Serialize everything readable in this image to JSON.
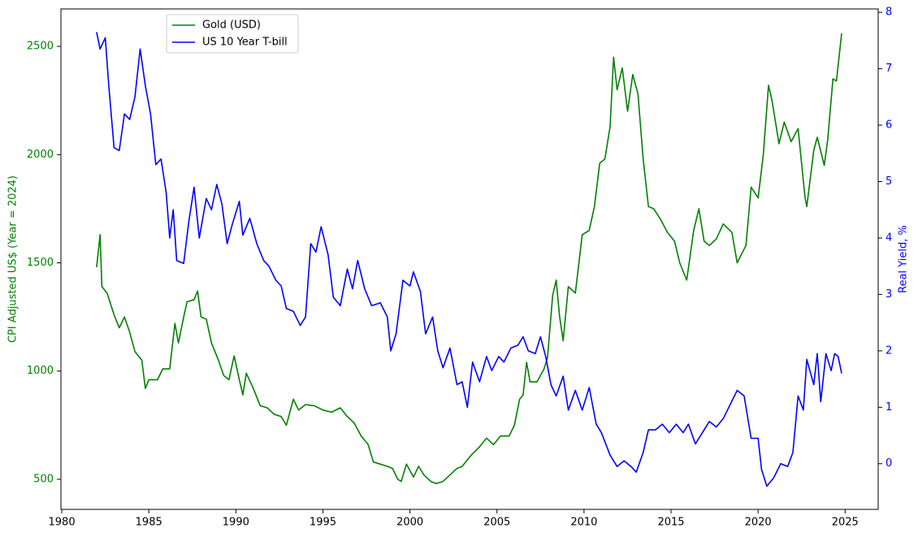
{
  "chart_data": {
    "type": "line",
    "ylabel": "CPI Adjusted US$ (Year = 2024)",
    "y2label": "Real Yield, %",
    "xlim": [
      1979.95,
      2026.9
    ],
    "ylim": [
      361,
      2673
    ],
    "y2lim": [
      -0.81,
      8.06
    ],
    "xticks": [
      1980,
      1985,
      1990,
      1995,
      2000,
      2005,
      2010,
      2015,
      2020,
      2025
    ],
    "yticks": [
      500,
      1000,
      1500,
      2000,
      2500
    ],
    "y2ticks": [
      0,
      1,
      2,
      3,
      4,
      5,
      6,
      7,
      8
    ],
    "legend": "upper left",
    "series": [
      {
        "name": "Gold (USD)",
        "color": "#008000",
        "x": [
          1982.0,
          1982.2,
          1982.3,
          1982.6,
          1983.0,
          1983.3,
          1983.6,
          1983.9,
          1984.2,
          1984.6,
          1984.8,
          1985.0,
          1985.5,
          1985.8,
          1986.2,
          1986.5,
          1986.7,
          1987.0,
          1987.2,
          1987.6,
          1987.8,
          1988.0,
          1988.3,
          1988.6,
          1989.0,
          1989.3,
          1989.6,
          1989.9,
          1990.2,
          1990.4,
          1990.6,
          1991.0,
          1991.4,
          1991.8,
          1992.2,
          1992.6,
          1992.9,
          1993.3,
          1993.6,
          1994.0,
          1994.5,
          1995.0,
          1995.5,
          1996.0,
          1996.4,
          1996.8,
          1997.2,
          1997.6,
          1997.9,
          1998.3,
          1998.7,
          1999.0,
          1999.3,
          1999.5,
          1999.8,
          2000.2,
          2000.5,
          2000.8,
          2001.2,
          2001.5,
          2001.9,
          2002.3,
          2002.7,
          2003.0,
          2003.5,
          2004.0,
          2004.4,
          2004.8,
          2005.2,
          2005.7,
          2006.0,
          2006.3,
          2006.5,
          2006.7,
          2006.9,
          2007.3,
          2007.7,
          2007.9,
          2008.2,
          2008.4,
          2008.6,
          2008.8,
          2009.1,
          2009.5,
          2009.9,
          2010.3,
          2010.6,
          2010.9,
          2011.2,
          2011.5,
          2011.7,
          2011.9,
          2012.2,
          2012.5,
          2012.8,
          2013.1,
          2013.4,
          2013.7,
          2014.0,
          2014.4,
          2014.8,
          2015.2,
          2015.5,
          2015.9,
          2016.3,
          2016.6,
          2016.9,
          2017.2,
          2017.6,
          2018.0,
          2018.5,
          2018.8,
          2019.3,
          2019.6,
          2020.0,
          2020.3,
          2020.6,
          2020.8,
          2021.2,
          2021.5,
          2021.9,
          2022.3,
          2022.7,
          2022.8,
          2023.2,
          2023.4,
          2023.8,
          2024.0,
          2024.3,
          2024.5,
          2024.8
        ],
        "values": [
          1480,
          1630,
          1390,
          1360,
          1260,
          1200,
          1250,
          1180,
          1090,
          1050,
          920,
          960,
          960,
          1010,
          1010,
          1220,
          1130,
          1250,
          1320,
          1330,
          1370,
          1250,
          1240,
          1130,
          1050,
          980,
          960,
          1070,
          960,
          890,
          990,
          920,
          840,
          830,
          800,
          790,
          750,
          870,
          820,
          845,
          840,
          820,
          810,
          830,
          790,
          760,
          700,
          660,
          580,
          570,
          560,
          550,
          500,
          490,
          570,
          510,
          560,
          520,
          490,
          480,
          490,
          520,
          550,
          560,
          610,
          650,
          690,
          660,
          700,
          700,
          750,
          870,
          890,
          1040,
          950,
          950,
          1010,
          1060,
          1350,
          1420,
          1250,
          1140,
          1390,
          1360,
          1630,
          1650,
          1760,
          1960,
          1980,
          2130,
          2450,
          2300,
          2400,
          2200,
          2370,
          2280,
          1980,
          1760,
          1750,
          1700,
          1640,
          1600,
          1500,
          1420,
          1650,
          1750,
          1600,
          1580,
          1610,
          1680,
          1640,
          1500,
          1580,
          1850,
          1800,
          2000,
          2320,
          2250,
          2050,
          2150,
          2060,
          2120,
          1800,
          1760,
          2020,
          2080,
          1950,
          2070,
          2350,
          2340,
          2560
        ]
      },
      {
        "name": "US 10 Year T-bill",
        "color": "#0000ff",
        "axis": "y2",
        "x": [
          1982.0,
          1982.2,
          1982.5,
          1982.7,
          1983.0,
          1983.3,
          1983.6,
          1983.9,
          1984.2,
          1984.5,
          1984.8,
          1985.1,
          1985.4,
          1985.7,
          1986.0,
          1986.2,
          1986.4,
          1986.6,
          1987.0,
          1987.3,
          1987.6,
          1987.9,
          1988.3,
          1988.6,
          1988.9,
          1989.2,
          1989.5,
          1989.8,
          1990.2,
          1990.4,
          1990.8,
          1991.2,
          1991.6,
          1991.9,
          1992.3,
          1992.6,
          1992.9,
          1993.3,
          1993.7,
          1994.0,
          1994.3,
          1994.6,
          1994.9,
          1995.3,
          1995.6,
          1996.0,
          1996.4,
          1996.7,
          1997.0,
          1997.4,
          1997.8,
          1998.3,
          1998.7,
          1998.9,
          1999.2,
          1999.6,
          2000.0,
          2000.2,
          2000.6,
          2000.9,
          2001.3,
          2001.6,
          2001.9,
          2002.3,
          2002.7,
          2003.0,
          2003.3,
          2003.6,
          2004.0,
          2004.4,
          2004.7,
          2005.1,
          2005.4,
          2005.8,
          2006.2,
          2006.5,
          2006.8,
          2007.2,
          2007.5,
          2007.8,
          2008.1,
          2008.4,
          2008.8,
          2009.1,
          2009.5,
          2009.9,
          2010.3,
          2010.7,
          2011.0,
          2011.5,
          2011.9,
          2012.3,
          2012.7,
          2013.0,
          2013.4,
          2013.7,
          2014.1,
          2014.5,
          2014.9,
          2015.3,
          2015.7,
          2016.0,
          2016.4,
          2016.8,
          2017.2,
          2017.6,
          2018.0,
          2018.4,
          2018.8,
          2019.2,
          2019.6,
          2020.0,
          2020.2,
          2020.5,
          2020.9,
          2021.3,
          2021.7,
          2022.0,
          2022.3,
          2022.6,
          2022.8,
          2023.2,
          2023.4,
          2023.6,
          2023.9,
          2024.2,
          2024.4,
          2024.6,
          2024.8
        ],
        "values": [
          7.65,
          7.35,
          7.55,
          6.7,
          5.6,
          5.55,
          6.2,
          6.1,
          6.5,
          7.35,
          6.7,
          6.2,
          5.3,
          5.4,
          4.8,
          4.0,
          4.5,
          3.6,
          3.55,
          4.3,
          4.9,
          4.0,
          4.7,
          4.5,
          4.95,
          4.6,
          3.9,
          4.25,
          4.65,
          4.05,
          4.35,
          3.9,
          3.6,
          3.5,
          3.25,
          3.15,
          2.75,
          2.7,
          2.45,
          2.6,
          3.9,
          3.75,
          4.2,
          3.7,
          2.95,
          2.8,
          3.45,
          3.1,
          3.6,
          3.1,
          2.8,
          2.85,
          2.6,
          2.0,
          2.3,
          3.25,
          3.15,
          3.4,
          3.05,
          2.3,
          2.6,
          2.0,
          1.7,
          2.05,
          1.4,
          1.45,
          1.0,
          1.8,
          1.45,
          1.9,
          1.65,
          1.9,
          1.8,
          2.05,
          2.1,
          2.25,
          2.0,
          1.95,
          2.25,
          1.9,
          1.4,
          1.2,
          1.55,
          0.95,
          1.3,
          0.95,
          1.35,
          0.7,
          0.55,
          0.15,
          -0.05,
          0.05,
          -0.05,
          -0.15,
          0.2,
          0.6,
          0.6,
          0.7,
          0.55,
          0.7,
          0.55,
          0.7,
          0.35,
          0.55,
          0.75,
          0.65,
          0.8,
          1.05,
          1.3,
          1.2,
          0.45,
          0.45,
          -0.1,
          -0.4,
          -0.25,
          0.0,
          -0.05,
          0.2,
          1.2,
          0.95,
          1.85,
          1.4,
          1.95,
          1.1,
          1.95,
          1.65,
          1.95,
          1.9,
          1.6
        ]
      }
    ]
  }
}
